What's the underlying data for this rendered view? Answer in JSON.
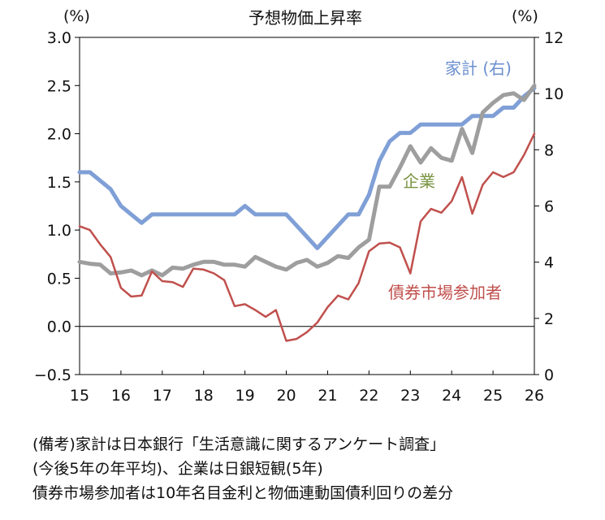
{
  "chart_data": {
    "type": "line",
    "title": "予想物価上昇率",
    "left_axis_label": "(%)",
    "right_axis_label": "(%)",
    "x_tick_labels": [
      "15",
      "16",
      "17",
      "18",
      "19",
      "20",
      "21",
      "22",
      "23",
      "24",
      "25",
      "26"
    ],
    "xlim": [
      15,
      26
    ],
    "left_ylim": [
      -0.5,
      3.0
    ],
    "left_yticks": [
      "3.0",
      "2.5",
      "2.0",
      "1.5",
      "1.0",
      "0.5",
      "0.0",
      "−0.5"
    ],
    "left_ytick_values": [
      3.0,
      2.5,
      2.0,
      1.5,
      1.0,
      0.5,
      0.0,
      -0.5
    ],
    "right_ylim": [
      0,
      12
    ],
    "right_yticks": [
      "12",
      "10",
      "8",
      "6",
      "4",
      "2",
      "0"
    ],
    "right_ytick_values": [
      12,
      10,
      8,
      6,
      4,
      2,
      0
    ],
    "zero_line": 0.0,
    "series": [
      {
        "name": "家計(右)",
        "label": "家計(右)",
        "axis": "right",
        "color": "#7f9fd6",
        "x": [
          15.0,
          15.25,
          15.5,
          15.75,
          16.0,
          16.25,
          16.5,
          16.75,
          17.0,
          17.25,
          17.5,
          17.75,
          18.0,
          18.25,
          18.5,
          18.75,
          19.0,
          19.25,
          19.5,
          19.75,
          20.0,
          20.25,
          20.5,
          20.75,
          21.0,
          21.25,
          21.5,
          21.75,
          22.0,
          22.25,
          22.5,
          22.75,
          23.0,
          23.25,
          23.5,
          23.75,
          24.0,
          24.25,
          24.5,
          24.75,
          25.0,
          25.25,
          25.5,
          25.75,
          26.0
        ],
        "values": [
          7.2,
          7.2,
          6.9,
          6.6,
          6.0,
          5.7,
          5.4,
          5.7,
          5.7,
          5.7,
          5.7,
          5.7,
          5.7,
          5.7,
          5.7,
          5.7,
          6.0,
          5.7,
          5.7,
          5.7,
          5.7,
          5.3,
          4.9,
          4.5,
          4.9,
          5.3,
          5.7,
          5.7,
          6.4,
          7.6,
          8.3,
          8.6,
          8.6,
          8.9,
          8.9,
          8.9,
          8.9,
          8.9,
          9.2,
          9.2,
          9.2,
          9.5,
          9.5,
          9.9,
          10.2
        ]
      },
      {
        "name": "企業",
        "label": "企業",
        "axis": "left",
        "color": "#9e9e9e",
        "x": [
          15.0,
          15.25,
          15.5,
          15.75,
          16.0,
          16.25,
          16.5,
          16.75,
          17.0,
          17.25,
          17.5,
          17.75,
          18.0,
          18.25,
          18.5,
          18.75,
          19.0,
          19.25,
          19.5,
          19.75,
          20.0,
          20.25,
          20.5,
          20.75,
          21.0,
          21.25,
          21.5,
          21.75,
          22.0,
          22.25,
          22.5,
          22.75,
          23.0,
          23.25,
          23.5,
          23.75,
          24.0,
          24.25,
          24.5,
          24.75,
          25.0,
          25.25,
          25.5,
          25.75,
          26.0
        ],
        "values": [
          0.67,
          0.65,
          0.64,
          0.55,
          0.56,
          0.58,
          0.53,
          0.58,
          0.53,
          0.61,
          0.6,
          0.64,
          0.67,
          0.67,
          0.64,
          0.64,
          0.62,
          0.72,
          0.67,
          0.62,
          0.59,
          0.66,
          0.69,
          0.62,
          0.66,
          0.73,
          0.71,
          0.82,
          0.9,
          1.45,
          1.45,
          1.65,
          1.87,
          1.7,
          1.85,
          1.75,
          1.72,
          2.05,
          1.8,
          2.22,
          2.32,
          2.4,
          2.42,
          2.35,
          2.5
        ]
      },
      {
        "name": "債券市場参加者",
        "label": "債券市場参加者",
        "axis": "left",
        "color": "#c0504d",
        "x": [
          15.0,
          15.25,
          15.5,
          15.75,
          16.0,
          16.25,
          16.5,
          16.75,
          17.0,
          17.25,
          17.5,
          17.75,
          18.0,
          18.25,
          18.5,
          18.75,
          19.0,
          19.25,
          19.5,
          19.75,
          20.0,
          20.25,
          20.5,
          20.75,
          21.0,
          21.25,
          21.5,
          21.75,
          22.0,
          22.25,
          22.5,
          22.75,
          23.0,
          23.25,
          23.5,
          23.75,
          24.0,
          24.25,
          24.5,
          24.75,
          25.0,
          25.25,
          25.5,
          25.75,
          26.0
        ],
        "values": [
          1.04,
          1.0,
          0.85,
          0.72,
          0.4,
          0.31,
          0.32,
          0.57,
          0.47,
          0.46,
          0.41,
          0.6,
          0.59,
          0.55,
          0.48,
          0.21,
          0.23,
          0.17,
          0.1,
          0.17,
          -0.15,
          -0.13,
          -0.06,
          0.04,
          0.2,
          0.32,
          0.28,
          0.45,
          0.78,
          0.86,
          0.87,
          0.82,
          0.55,
          1.09,
          1.22,
          1.18,
          1.3,
          1.55,
          1.17,
          1.47,
          1.6,
          1.55,
          1.6,
          1.78,
          2.0
        ]
      }
    ],
    "annotations": [
      {
        "text": "家計 (右)",
        "series": "家計(右)"
      },
      {
        "text": "企業",
        "series": "企業"
      },
      {
        "text": "債券市場参加者",
        "series": "債券市場参加者"
      }
    ]
  },
  "notes": {
    "line1": "(備考)家計は日本銀行「生活意識に関するアンケート調査」",
    "line2": "(今後5年の年平均)、企業は日銀短観(5年)",
    "line3": "債券市場参加者は10年名目金利と物価連動国債利回りの差分"
  }
}
